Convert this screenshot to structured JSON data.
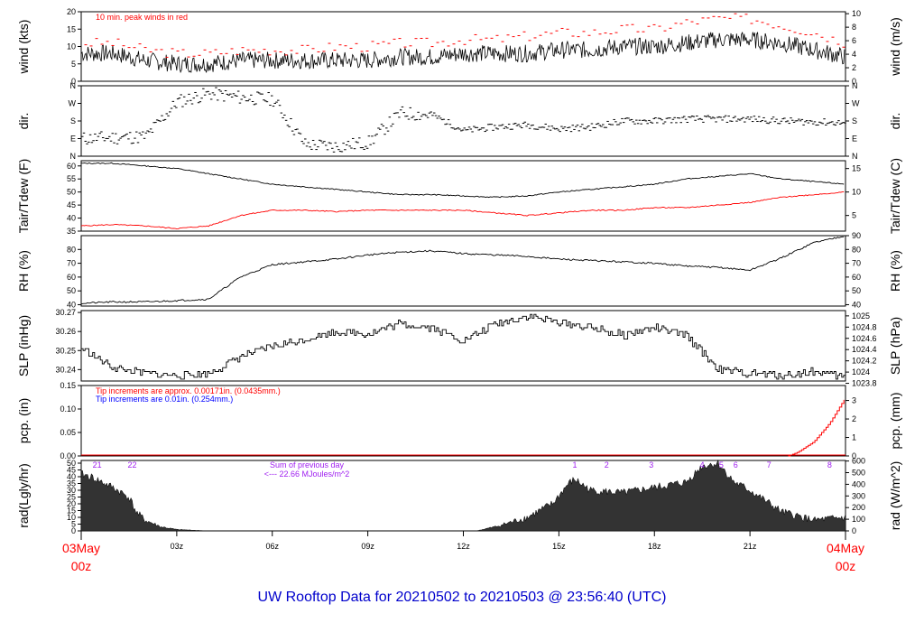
{
  "footer_title": "UW Rooftop Data for 20210502  to  20210503 @ 23:56:40  (UTC)",
  "colors": {
    "title": "#0000cc",
    "red": "#ff0000",
    "blue": "#0000ff",
    "purple": "#a020f0",
    "black": "#000000"
  },
  "time_axis": {
    "start_label": [
      "03May",
      "00z"
    ],
    "end_label": [
      "04May",
      "00z"
    ],
    "tick_hours": [
      3,
      6,
      9,
      12,
      15,
      18,
      21
    ],
    "tick_labels": [
      "03z",
      "06z",
      "09z",
      "12z",
      "15z",
      "18z",
      "21z"
    ]
  },
  "panels": {
    "wind": {
      "ylabel_left": "wind (kts)",
      "ylabel_right": "wind (m/s)",
      "left_ticks": [
        0,
        5,
        10,
        15,
        20
      ],
      "right_ticks": [
        0,
        2,
        4,
        6,
        8,
        10
      ],
      "annotation": "10 min. peak winds in red"
    },
    "dir": {
      "ylabel_left": "dir.",
      "ylabel_right": "dir.",
      "ticks": [
        "N",
        "E",
        "S",
        "W",
        "N"
      ]
    },
    "temp": {
      "ylabel_left": "Tair/Tdew (F)",
      "ylabel_right": "Tair/Tdew (C)",
      "left_ticks": [
        35,
        40,
        45,
        50,
        55,
        60
      ],
      "right_ticks": [
        5,
        10,
        15
      ]
    },
    "rh": {
      "ylabel_left": "RH (%)",
      "ylabel_right": "RH (%)",
      "left_ticks": [
        40,
        50,
        60,
        70,
        80
      ],
      "right_ticks": [
        40,
        50,
        60,
        70,
        80,
        90
      ]
    },
    "slp": {
      "ylabel_left": "SLP (inHg)",
      "ylabel_right": "SLP (hPa)",
      "left_ticks": [
        "30.24",
        "30.25",
        "30.26",
        "30.27"
      ],
      "right_ticks": [
        "1023.8",
        "1024",
        "1024.2",
        "1024.4",
        "1024.6",
        "1024.8",
        "1025"
      ]
    },
    "pcp": {
      "ylabel_left": "pcp. (in)",
      "ylabel_right": "pcp. (mm)",
      "left_ticks": [
        "0.00",
        "0.05",
        "0.10",
        "0.15"
      ],
      "right_ticks": [
        0,
        1,
        2,
        3
      ],
      "note_red": "Tip increments are approx. 0.00171in. (0.0435mm.)",
      "note_blue": "Tip increments are 0.01in. (0.254mm.)"
    },
    "rad": {
      "ylabel_left": "rad(Lgly/hr)",
      "ylabel_right": "rad (W/m^2)",
      "left_ticks": [
        0,
        5,
        10,
        15,
        20,
        25,
        30,
        35,
        40,
        45,
        50
      ],
      "right_ticks": [
        0,
        100,
        200,
        300,
        400,
        500,
        600
      ],
      "sum_line1": "Sum of previous day",
      "sum_line2": "<--- 22.66 MJoules/m^2",
      "hour_marks": [
        "21",
        "22",
        "1",
        "2",
        "3",
        "4",
        "5",
        "6",
        "7",
        "8"
      ]
    }
  },
  "chart_data": [
    {
      "type": "line",
      "title": "",
      "ylabel": "wind (kts)",
      "ylim": [
        0,
        20
      ],
      "x_hours": [
        0,
        1,
        2,
        3,
        4,
        5,
        6,
        7,
        8,
        9,
        10,
        11,
        12,
        13,
        14,
        15,
        16,
        17,
        18,
        19,
        20,
        21,
        22,
        23,
        24
      ],
      "series": [
        {
          "name": "",
          "values": [
            8,
            8,
            6,
            5,
            5,
            6,
            6,
            6,
            6,
            6,
            7,
            7,
            8,
            8,
            8,
            9,
            9,
            10,
            10,
            11,
            12,
            12,
            11,
            9,
            7
          ]
        },
        {
          "name": "10 min. peak winds in red",
          "values": [
            11,
            11,
            9,
            8,
            8,
            9,
            9,
            9,
            10,
            10,
            11,
            11,
            12,
            12,
            13,
            14,
            14,
            15,
            15,
            17,
            18,
            18,
            16,
            14,
            11
          ]
        }
      ]
    },
    {
      "type": "scatter",
      "ylabel": "dir.",
      "y_ticks": [
        "N",
        "E",
        "S",
        "W",
        "N"
      ],
      "ylim": [
        0,
        360
      ],
      "x_hours": [
        0,
        1,
        2,
        3,
        4,
        5,
        6,
        7,
        8,
        9,
        10,
        11,
        12,
        13,
        14,
        15,
        16,
        17,
        18,
        19,
        20,
        21,
        22,
        23,
        24
      ],
      "values": [
        90,
        95,
        100,
        280,
        320,
        300,
        290,
        60,
        50,
        70,
        220,
        210,
        130,
        150,
        160,
        140,
        150,
        180,
        180,
        190,
        190,
        190,
        180,
        175,
        170
      ]
    },
    {
      "type": "line",
      "ylabel": "Tair/Tdew (F)",
      "ylim": [
        35,
        62
      ],
      "x_hours": [
        0,
        1,
        2,
        3,
        4,
        5,
        6,
        7,
        8,
        9,
        10,
        11,
        12,
        13,
        14,
        15,
        16,
        17,
        18,
        19,
        20,
        21,
        22,
        23,
        24
      ],
      "series": [
        {
          "name": "Tair",
          "values": [
            61,
            61,
            60,
            59,
            57,
            55,
            53,
            52,
            51,
            50,
            49,
            49,
            48.5,
            48,
            48.5,
            50,
            51,
            52,
            53,
            55,
            56,
            57,
            55,
            54,
            53
          ]
        },
        {
          "name": "Tdew",
          "values": [
            37,
            37.5,
            37,
            36,
            37,
            41,
            43,
            43,
            42.5,
            43,
            43,
            43,
            43,
            42,
            41,
            42,
            43,
            43,
            44,
            44,
            45,
            46,
            48,
            49,
            50
          ]
        }
      ]
    },
    {
      "type": "line",
      "ylabel": "RH (%)",
      "ylim": [
        39,
        90
      ],
      "x_hours": [
        0,
        1,
        2,
        3,
        4,
        5,
        6,
        7,
        8,
        9,
        10,
        11,
        12,
        13,
        14,
        15,
        16,
        17,
        18,
        19,
        20,
        21,
        22,
        23,
        24
      ],
      "values": [
        41,
        42,
        42,
        43,
        44,
        60,
        69,
        71,
        73,
        76,
        78,
        79,
        77,
        76,
        75,
        73,
        72,
        71,
        70,
        68,
        67,
        65,
        74,
        85,
        90
      ]
    },
    {
      "type": "line",
      "ylabel": "SLP (inHg)",
      "ylim": [
        30.234,
        30.271
      ],
      "x_hours": [
        0,
        1,
        2,
        3,
        4,
        5,
        6,
        7,
        8,
        9,
        10,
        11,
        12,
        13,
        14,
        15,
        16,
        17,
        18,
        19,
        20,
        21,
        22,
        23,
        24
      ],
      "values": [
        30.251,
        30.241,
        30.238,
        30.237,
        30.238,
        30.247,
        30.252,
        30.256,
        30.26,
        30.259,
        30.264,
        30.262,
        30.255,
        30.264,
        30.268,
        30.265,
        30.262,
        30.258,
        30.262,
        30.258,
        30.24,
        30.238,
        30.237,
        30.239,
        30.236
      ]
    },
    {
      "type": "line",
      "ylabel": "pcp. (in)",
      "ylim": [
        0,
        0.15
      ],
      "x_hours": [
        0,
        22.2,
        22.5,
        23,
        23.5,
        24
      ],
      "series": [
        {
          "name": "",
          "values": [
            0,
            0,
            0.008,
            0.03,
            0.07,
            0.125
          ]
        }
      ]
    },
    {
      "type": "area",
      "ylabel": "rad(Lgly/hr)",
      "ylim": [
        0,
        52
      ],
      "x_hours": [
        0,
        0.3,
        1,
        1.5,
        1.75,
        2,
        2.5,
        3,
        3.5,
        4,
        12.4,
        13,
        14,
        14.8,
        15.3,
        15.5,
        16,
        17,
        18,
        19,
        19.5,
        20,
        20.5,
        21,
        22,
        23,
        24
      ],
      "values": [
        42,
        40,
        32,
        25,
        13,
        8,
        3,
        1,
        0.5,
        0,
        0,
        3,
        10,
        20,
        35,
        38,
        30,
        28,
        32,
        36,
        48,
        50,
        36,
        30,
        14,
        8,
        10
      ]
    }
  ]
}
